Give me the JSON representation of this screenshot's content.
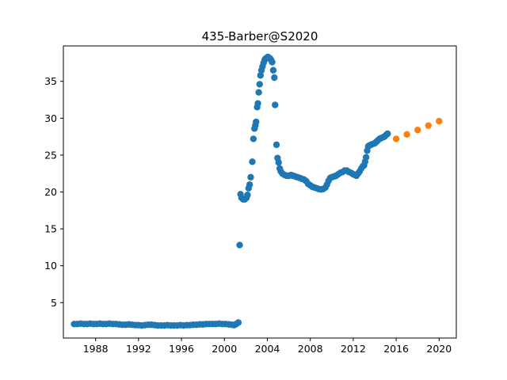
{
  "chart_data": {
    "type": "scatter",
    "title": "435-Barber@S2020",
    "xlabel": "",
    "ylabel": "",
    "xlim": [
      1985.0,
      2021.6
    ],
    "ylim": [
      0.2,
      39.8
    ],
    "x_ticks": [
      1988,
      1992,
      1996,
      2000,
      2004,
      2008,
      2012,
      2016,
      2020
    ],
    "y_ticks": [
      5,
      10,
      15,
      20,
      25,
      30,
      35
    ],
    "grid": false,
    "legend": "none",
    "series": [
      {
        "color": "#1f77b4",
        "marker": "circle",
        "points": [
          [
            1986.0,
            2.1
          ],
          [
            1986.3,
            2.1
          ],
          [
            1986.6,
            2.15
          ],
          [
            1986.9,
            2.1
          ],
          [
            1987.2,
            2.1
          ],
          [
            1987.5,
            2.15
          ],
          [
            1987.8,
            2.1
          ],
          [
            1988.1,
            2.1
          ],
          [
            1988.4,
            2.15
          ],
          [
            1988.7,
            2.1
          ],
          [
            1989.0,
            2.1
          ],
          [
            1989.3,
            2.15
          ],
          [
            1989.6,
            2.1
          ],
          [
            1989.9,
            2.1
          ],
          [
            1990.2,
            2.05
          ],
          [
            1990.5,
            2.0
          ],
          [
            1990.8,
            2.0
          ],
          [
            1991.1,
            2.05
          ],
          [
            1991.4,
            2.0
          ],
          [
            1991.7,
            1.95
          ],
          [
            1992.0,
            1.95
          ],
          [
            1992.3,
            1.9
          ],
          [
            1992.6,
            1.95
          ],
          [
            1992.9,
            2.0
          ],
          [
            1993.2,
            2.0
          ],
          [
            1993.5,
            1.95
          ],
          [
            1993.8,
            1.9
          ],
          [
            1994.1,
            1.9
          ],
          [
            1994.4,
            1.9
          ],
          [
            1994.7,
            1.95
          ],
          [
            1995.0,
            1.9
          ],
          [
            1995.3,
            1.9
          ],
          [
            1995.6,
            1.9
          ],
          [
            1995.9,
            1.95
          ],
          [
            1996.2,
            1.9
          ],
          [
            1996.5,
            1.95
          ],
          [
            1996.8,
            1.95
          ],
          [
            1997.1,
            2.0
          ],
          [
            1997.4,
            2.0
          ],
          [
            1997.7,
            2.05
          ],
          [
            1998.0,
            2.05
          ],
          [
            1998.3,
            2.1
          ],
          [
            1998.6,
            2.1
          ],
          [
            1998.9,
            2.1
          ],
          [
            1999.2,
            2.1
          ],
          [
            1999.5,
            2.15
          ],
          [
            1999.8,
            2.1
          ],
          [
            2000.1,
            2.1
          ],
          [
            2000.4,
            2.05
          ],
          [
            2000.7,
            2.0
          ],
          [
            2000.9,
            1.95
          ],
          [
            2001.1,
            2.1
          ],
          [
            2001.3,
            2.3
          ],
          [
            2001.42,
            12.8
          ],
          [
            2001.5,
            19.7
          ],
          [
            2001.6,
            19.2
          ],
          [
            2001.75,
            19.0
          ],
          [
            2001.9,
            19.0
          ],
          [
            2002.05,
            19.2
          ],
          [
            2002.15,
            19.6
          ],
          [
            2002.25,
            20.5
          ],
          [
            2002.35,
            21.0
          ],
          [
            2002.45,
            22.0
          ],
          [
            2002.6,
            24.1
          ],
          [
            2002.7,
            27.2
          ],
          [
            2002.8,
            28.6
          ],
          [
            2002.88,
            29.0
          ],
          [
            2002.95,
            29.5
          ],
          [
            2003.05,
            31.5
          ],
          [
            2003.12,
            32.0
          ],
          [
            2003.2,
            33.5
          ],
          [
            2003.28,
            34.6
          ],
          [
            2003.36,
            35.8
          ],
          [
            2003.45,
            36.5
          ],
          [
            2003.55,
            37.0
          ],
          [
            2003.65,
            37.5
          ],
          [
            2003.75,
            37.9
          ],
          [
            2003.85,
            38.1
          ],
          [
            2003.95,
            38.2
          ],
          [
            2004.05,
            38.3
          ],
          [
            2004.15,
            38.2
          ],
          [
            2004.25,
            38.1
          ],
          [
            2004.35,
            37.9
          ],
          [
            2004.45,
            37.6
          ],
          [
            2004.55,
            36.5
          ],
          [
            2004.65,
            35.5
          ],
          [
            2004.72,
            31.8
          ],
          [
            2004.85,
            26.4
          ],
          [
            2004.95,
            24.6
          ],
          [
            2005.05,
            24.0
          ],
          [
            2005.15,
            23.2
          ],
          [
            2005.25,
            22.8
          ],
          [
            2005.4,
            22.5
          ],
          [
            2005.6,
            22.3
          ],
          [
            2005.8,
            22.2
          ],
          [
            2006.0,
            22.2
          ],
          [
            2006.2,
            22.3
          ],
          [
            2006.4,
            22.2
          ],
          [
            2006.6,
            22.1
          ],
          [
            2006.8,
            22.0
          ],
          [
            2007.0,
            21.9
          ],
          [
            2007.2,
            21.8
          ],
          [
            2007.4,
            21.7
          ],
          [
            2007.6,
            21.5
          ],
          [
            2007.8,
            21.1
          ],
          [
            2008.0,
            20.9
          ],
          [
            2008.2,
            20.7
          ],
          [
            2008.4,
            20.6
          ],
          [
            2008.6,
            20.5
          ],
          [
            2008.8,
            20.4
          ],
          [
            2009.0,
            20.35
          ],
          [
            2009.2,
            20.4
          ],
          [
            2009.4,
            20.6
          ],
          [
            2009.55,
            21.0
          ],
          [
            2009.7,
            21.5
          ],
          [
            2009.85,
            21.9
          ],
          [
            2010.0,
            22.0
          ],
          [
            2010.2,
            22.1
          ],
          [
            2010.4,
            22.2
          ],
          [
            2010.6,
            22.4
          ],
          [
            2010.8,
            22.6
          ],
          [
            2011.0,
            22.7
          ],
          [
            2011.2,
            22.9
          ],
          [
            2011.4,
            22.9
          ],
          [
            2011.6,
            22.7
          ],
          [
            2011.8,
            22.6
          ],
          [
            2012.0,
            22.4
          ],
          [
            2012.15,
            22.3
          ],
          [
            2012.3,
            22.2
          ],
          [
            2012.45,
            22.5
          ],
          [
            2012.6,
            22.8
          ],
          [
            2012.75,
            23.2
          ],
          [
            2012.9,
            23.5
          ],
          [
            2013.0,
            23.6
          ],
          [
            2013.1,
            24.1
          ],
          [
            2013.2,
            24.7
          ],
          [
            2013.3,
            25.6
          ],
          [
            2013.4,
            26.2
          ],
          [
            2013.5,
            26.3
          ],
          [
            2013.65,
            26.4
          ],
          [
            2013.8,
            26.5
          ],
          [
            2014.0,
            26.6
          ],
          [
            2014.15,
            26.8
          ],
          [
            2014.3,
            27.0
          ],
          [
            2014.45,
            27.2
          ],
          [
            2014.6,
            27.3
          ],
          [
            2014.75,
            27.4
          ],
          [
            2014.9,
            27.5
          ],
          [
            2015.05,
            27.7
          ],
          [
            2015.2,
            27.9
          ]
        ]
      },
      {
        "color": "#ff7f0e",
        "marker": "circle",
        "points": [
          [
            2016,
            27.2
          ],
          [
            2017,
            27.8
          ],
          [
            2018,
            28.4
          ],
          [
            2019,
            29.0
          ],
          [
            2020,
            29.6
          ]
        ]
      }
    ]
  }
}
